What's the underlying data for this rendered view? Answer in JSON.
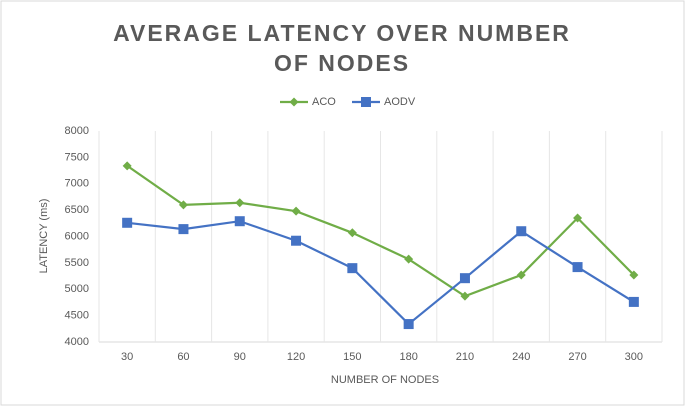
{
  "chart_data": {
    "type": "line",
    "title": "AVERAGE LATENCY OVER NUMBER OF NODES",
    "x_label": "NUMBER OF NODES",
    "y_label": "LATENCY (ms)",
    "categories": [
      "30",
      "60",
      "90",
      "120",
      "150",
      "180",
      "210",
      "240",
      "270",
      "300"
    ],
    "series": [
      {
        "name": "ACO",
        "color": "#70ad47",
        "marker": "diamond",
        "values": [
          7340,
          6600,
          6640,
          6480,
          6070,
          5570,
          4870,
          5270,
          6350,
          5270
        ]
      },
      {
        "name": "AODV",
        "color": "#4472c4",
        "marker": "square",
        "values": [
          6260,
          6140,
          6290,
          5920,
          5400,
          4340,
          5210,
          6100,
          5420,
          4760
        ]
      }
    ],
    "ylim": [
      4000,
      8000
    ],
    "yticks": [
      4000,
      4500,
      5000,
      5500,
      6000,
      6500,
      7000,
      7500,
      8000
    ],
    "grid": true,
    "legend": "top"
  }
}
